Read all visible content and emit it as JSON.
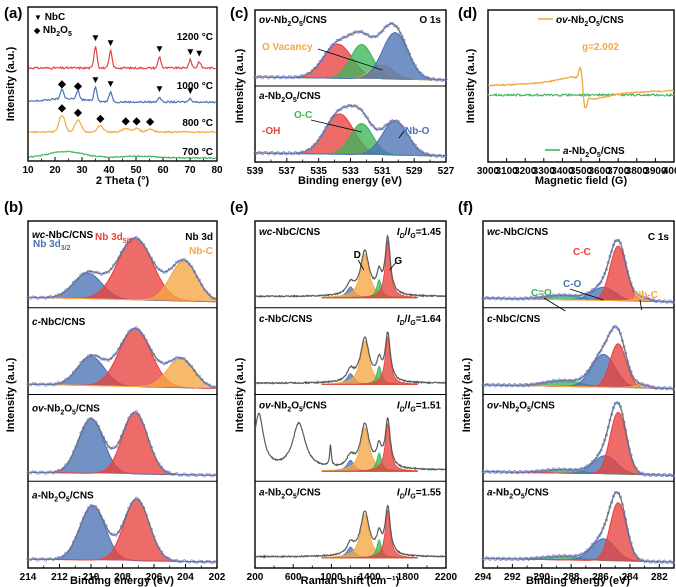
{
  "colors": {
    "red": "#e8423f",
    "blue": "#4a73b5",
    "orange": "#f5a742",
    "green": "#3cb55a",
    "gray": "#5a5a5a",
    "fit": "#6d6d6d",
    "dot": "#6f7fc8"
  },
  "chart_data": [
    {
      "panel": "(a)",
      "type": "line",
      "xlabel": "2 Theta (°)",
      "ylabel": "Intensity (a.u.)",
      "xlim": [
        10,
        80
      ],
      "xticks": [
        10,
        20,
        30,
        40,
        50,
        60,
        70,
        80
      ],
      "legend": [
        {
          "marker": "▼",
          "name": "NbC"
        },
        {
          "marker": "◆",
          "name": "Nb2O5",
          "sub": "2",
          "sub2": "5"
        }
      ],
      "series": [
        {
          "name": "1200 °C",
          "color": "#e8423f",
          "peaks": [
            [
              35.0,
              0.55
            ],
            [
              40.6,
              0.42
            ],
            [
              58.7,
              0.28
            ],
            [
              70.1,
              0.2
            ],
            [
              73.4,
              0.16
            ]
          ],
          "markers": "▼"
        },
        {
          "name": "1000 °C",
          "color": "#4a73b5",
          "peaks": [
            [
              22.6,
              0.3
            ],
            [
              28.5,
              0.25
            ],
            [
              35.0,
              0.42
            ],
            [
              40.6,
              0.3
            ],
            [
              58.7,
              0.15
            ],
            [
              70.1,
              0.1
            ]
          ],
          "markers": "▼"
        },
        {
          "name": "800 °C",
          "color": "#f5a742",
          "peaks": [
            [
              22.6,
              0.55
            ],
            [
              28.5,
              0.4
            ],
            [
              36.8,
              0.2
            ],
            [
              46.2,
              0.12
            ],
            [
              50.2,
              0.12
            ],
            [
              55.2,
              0.1
            ]
          ],
          "markers": "◆"
        },
        {
          "name": "700 °C",
          "color": "#3cb55a",
          "peaks": [
            [
              24.0,
              0.25
            ],
            [
              52.0,
              0.08
            ]
          ]
        }
      ]
    },
    {
      "panel": "(b)",
      "type": "line",
      "title": "Nb 3d",
      "xlabel": "Binding energy (eV)",
      "ylabel": "Intensity (a.u.)",
      "xlim": [
        214,
        202
      ],
      "xticks": [
        214,
        212,
        210,
        208,
        206,
        204,
        202
      ],
      "labels": {
        "nb32": "Nb 3d",
        "nb32_sub": "3/2",
        "nb52": "Nb 3d",
        "nb52_sub": "5/2",
        "nbc": "Nb-C"
      },
      "series": [
        {
          "name": "wc-NbC/CNS",
          "prefix": "wc",
          "rest": "-NbC/CNS",
          "peaks": [
            [
              210.2,
              0.35,
              0.9,
              "#4a73b5"
            ],
            [
              207.2,
              0.85,
              1.1,
              "#e8423f"
            ],
            [
              204.1,
              0.55,
              0.85,
              "#f5a742"
            ]
          ]
        },
        {
          "name": "c-NbC/CNS",
          "prefix": "c",
          "rest": "-NbC/CNS",
          "peaks": [
            [
              210.0,
              0.4,
              0.85,
              "#4a73b5"
            ],
            [
              207.2,
              0.8,
              1.0,
              "#e8423f"
            ],
            [
              204.3,
              0.4,
              0.85,
              "#f5a742"
            ]
          ]
        },
        {
          "name": "ov-Nb2O5/CNS",
          "prefix": "ov",
          "rest": "-Nb",
          "sub": "2",
          "mid": "O",
          "sub2": "5",
          "tail": "/CNS",
          "peaks": [
            [
              210.0,
              0.75,
              0.8,
              "#4a73b5"
            ],
            [
              207.2,
              0.85,
              0.8,
              "#e8423f"
            ]
          ]
        },
        {
          "name": "a-Nb2O5/CNS",
          "prefix": "a",
          "rest": "-Nb",
          "sub": "2",
          "mid": "O",
          "sub2": "5",
          "tail": "/CNS",
          "peaks": [
            [
              209.9,
              0.75,
              0.8,
              "#4a73b5"
            ],
            [
              207.1,
              0.85,
              0.8,
              "#e8423f"
            ]
          ]
        }
      ]
    },
    {
      "panel": "(c)",
      "type": "line",
      "title": "O 1s",
      "xlabel": "Binding energy (eV)",
      "ylabel": "Intensity (a.u.)",
      "xlim": [
        539,
        527
      ],
      "xticks": [
        539,
        537,
        535,
        533,
        531,
        529,
        527
      ],
      "labels": {
        "vacancy": "O Vacancy",
        "oc": "O-C",
        "oh": "-OH",
        "nbo": "Nb-O"
      },
      "series": [
        {
          "name": "ov-Nb2O5/CNS",
          "prefix": "ov",
          "rest": "-Nb",
          "sub": "2",
          "mid": "O",
          "sub2": "5",
          "tail": "/CNS",
          "peaks": [
            [
              533.8,
              0.55,
              0.9,
              "#e8423f"
            ],
            [
              532.3,
              0.55,
              0.7,
              "#3cb55a"
            ],
            [
              531.0,
              0.22,
              0.7,
              "#f5a742"
            ],
            [
              530.2,
              0.75,
              0.8,
              "#4a73b5"
            ]
          ]
        },
        {
          "name": "a-Nb2O5/CNS",
          "prefix": "a",
          "rest": "-Nb",
          "sub": "2",
          "mid": "O",
          "sub2": "5",
          "tail": "/CNS",
          "peaks": [
            [
              533.7,
              0.65,
              0.9,
              "#e8423f"
            ],
            [
              532.3,
              0.5,
              0.7,
              "#3cb55a"
            ],
            [
              530.2,
              0.55,
              0.8,
              "#4a73b5"
            ]
          ]
        }
      ]
    },
    {
      "panel": "(d)",
      "type": "line",
      "xlabel": "Magnetic field (G)",
      "ylabel": "Intensity (a.u.)",
      "xlim": [
        3000,
        4000
      ],
      "xticks": [
        3000,
        3100,
        3200,
        3300,
        3400,
        3500,
        3600,
        3700,
        3800,
        3900,
        4000
      ],
      "annotation": "g=2.002",
      "series": [
        {
          "name": "ov-Nb2O5/CNS",
          "prefix": "ov",
          "rest": "-Nb",
          "sub": "2",
          "mid": "O",
          "sub2": "5",
          "tail": "/CNS",
          "color": "#f5a742"
        },
        {
          "name": "a-Nb2O5/CNS",
          "prefix": "a",
          "rest": "-Nb",
          "sub": "2",
          "mid": "O",
          "sub2": "5",
          "tail": "/CNS",
          "color": "#3cb55a"
        }
      ]
    },
    {
      "panel": "(e)",
      "type": "line",
      "xlabel": "Raman shift (cm⁻¹)",
      "ylabel": "Intensity (a.u.)",
      "xlim": [
        200,
        2200
      ],
      "xticks": [
        200,
        600,
        1000,
        1400,
        1800,
        2200
      ],
      "labels": {
        "d": "D",
        "g": "G"
      },
      "ratio_label": {
        "i1": "I",
        "s1": "D",
        "slash": "/",
        "i2": "I",
        "s2": "G",
        "eq": "="
      },
      "series": [
        {
          "name": "wc-NbC/CNS",
          "prefix": "wc",
          "rest": "-NbC/CNS",
          "ratio": "1.45"
        },
        {
          "name": "c-NbC/CNS",
          "prefix": "c",
          "rest": "-NbC/CNS",
          "ratio": "1.64"
        },
        {
          "name": "ov-Nb2O5/CNS",
          "prefix": "ov",
          "rest": "-Nb",
          "sub": "2",
          "mid": "O",
          "sub2": "5",
          "tail": "/CNS",
          "ratio": "1.51"
        },
        {
          "name": "a-Nb2O5/CNS",
          "prefix": "a",
          "rest": "-Nb",
          "sub": "2",
          "mid": "O",
          "sub2": "5",
          "tail": "/CNS",
          "ratio": "1.55"
        }
      ]
    },
    {
      "panel": "(f)",
      "type": "line",
      "title": "C 1s",
      "xlabel": "Binding energy (eV)",
      "ylabel": "Intensity (a.u.)",
      "xlim": [
        294,
        281
      ],
      "xticks": [
        294,
        292,
        290,
        288,
        286,
        284,
        282
      ],
      "labels": {
        "cc": "C-C",
        "co": "C-O",
        "ceo": "C=O",
        "nbc": "Nb-C"
      },
      "series": [
        {
          "name": "wc-NbC/CNS",
          "prefix": "wc",
          "rest": "-NbC/CNS"
        },
        {
          "name": "c-NbC/CNS",
          "prefix": "c",
          "rest": "-NbC/CNS"
        },
        {
          "name": "ov-Nb2O5/CNS",
          "prefix": "ov",
          "rest": "-Nb",
          "sub": "2",
          "mid": "O",
          "sub2": "5",
          "tail": "/CNS"
        },
        {
          "name": "a-Nb2O5/CNS",
          "prefix": "a",
          "rest": "-Nb",
          "sub": "2",
          "mid": "O",
          "sub2": "5",
          "tail": "/CNS"
        }
      ]
    }
  ]
}
